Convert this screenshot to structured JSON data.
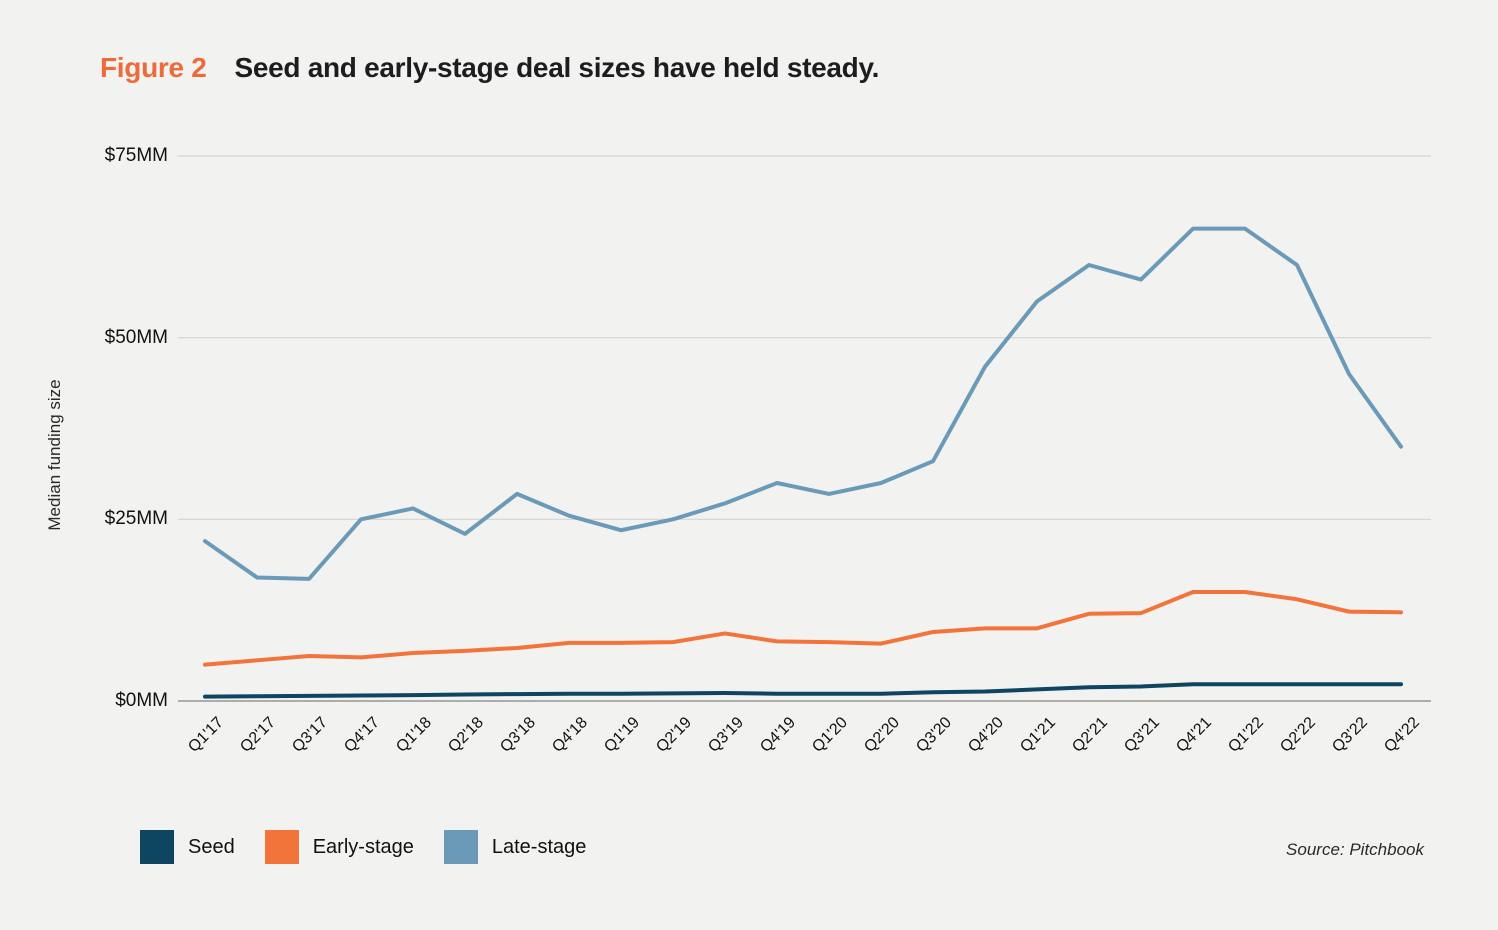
{
  "figure": {
    "label": "Figure 2",
    "title": "Seed and early-stage deal sizes have held steady."
  },
  "source": "Source: Pitchbook",
  "colors": {
    "background": "#f2f2f0",
    "figure_label_accent": "#ed6a3c",
    "title_text": "#1d1d1f",
    "gridline": "#d4d4d1",
    "axis_line": "#94948f",
    "seed": "#0e4560",
    "early_stage": "#f2743b",
    "late_stage": "#6b9ab8"
  },
  "chart_data": {
    "type": "line",
    "title": "Seed and early-stage deal sizes have held steady.",
    "xlabel": "",
    "ylabel": "Median funding size",
    "ylim": [
      0,
      75
    ],
    "grid": "horizontal",
    "legend_position": "bottom-left",
    "yticks": [
      {
        "label": "$0MM",
        "value": 0
      },
      {
        "label": "$25MM",
        "value": 25
      },
      {
        "label": "$50MM",
        "value": 50
      },
      {
        "label": "$75MM",
        "value": 75
      }
    ],
    "categories": [
      "Q1'17",
      "Q2'17",
      "Q3'17",
      "Q4'17",
      "Q1'18",
      "Q2'18",
      "Q3'18",
      "Q4'18",
      "Q1'19",
      "Q2'19",
      "Q3'19",
      "Q4'19",
      "Q1'20",
      "Q2'20",
      "Q3'20",
      "Q4'20",
      "Q1'21",
      "Q2'21",
      "Q3'21",
      "Q4'21",
      "Q1'22",
      "Q2'22",
      "Q3'22",
      "Q4'22"
    ],
    "series": [
      {
        "name": "Seed",
        "color": "#0e4560",
        "values": [
          0.6,
          0.65,
          0.7,
          0.75,
          0.8,
          0.9,
          0.95,
          1.0,
          1.0,
          1.05,
          1.1,
          1.0,
          1.0,
          1.0,
          1.2,
          1.3,
          1.6,
          1.9,
          2.0,
          2.3,
          2.3,
          2.3,
          2.3,
          2.3
        ]
      },
      {
        "name": "Early-stage",
        "color": "#f2743b",
        "values": [
          5.0,
          5.6,
          6.2,
          6.0,
          6.6,
          6.9,
          7.3,
          8.0,
          8.0,
          8.1,
          9.3,
          8.2,
          8.1,
          7.9,
          9.5,
          10.0,
          10.0,
          12.0,
          12.1,
          15.0,
          15.0,
          14.0,
          12.3,
          12.2
        ]
      },
      {
        "name": "Late-stage",
        "color": "#6b9ab8",
        "values": [
          22.0,
          17.0,
          16.8,
          25.0,
          26.5,
          23.0,
          28.5,
          25.5,
          23.5,
          25.0,
          27.2,
          30.0,
          28.5,
          30.0,
          33.0,
          46.0,
          55.0,
          60.0,
          58.0,
          65.0,
          65.0,
          60.0,
          45.0,
          35.0
        ]
      }
    ]
  }
}
